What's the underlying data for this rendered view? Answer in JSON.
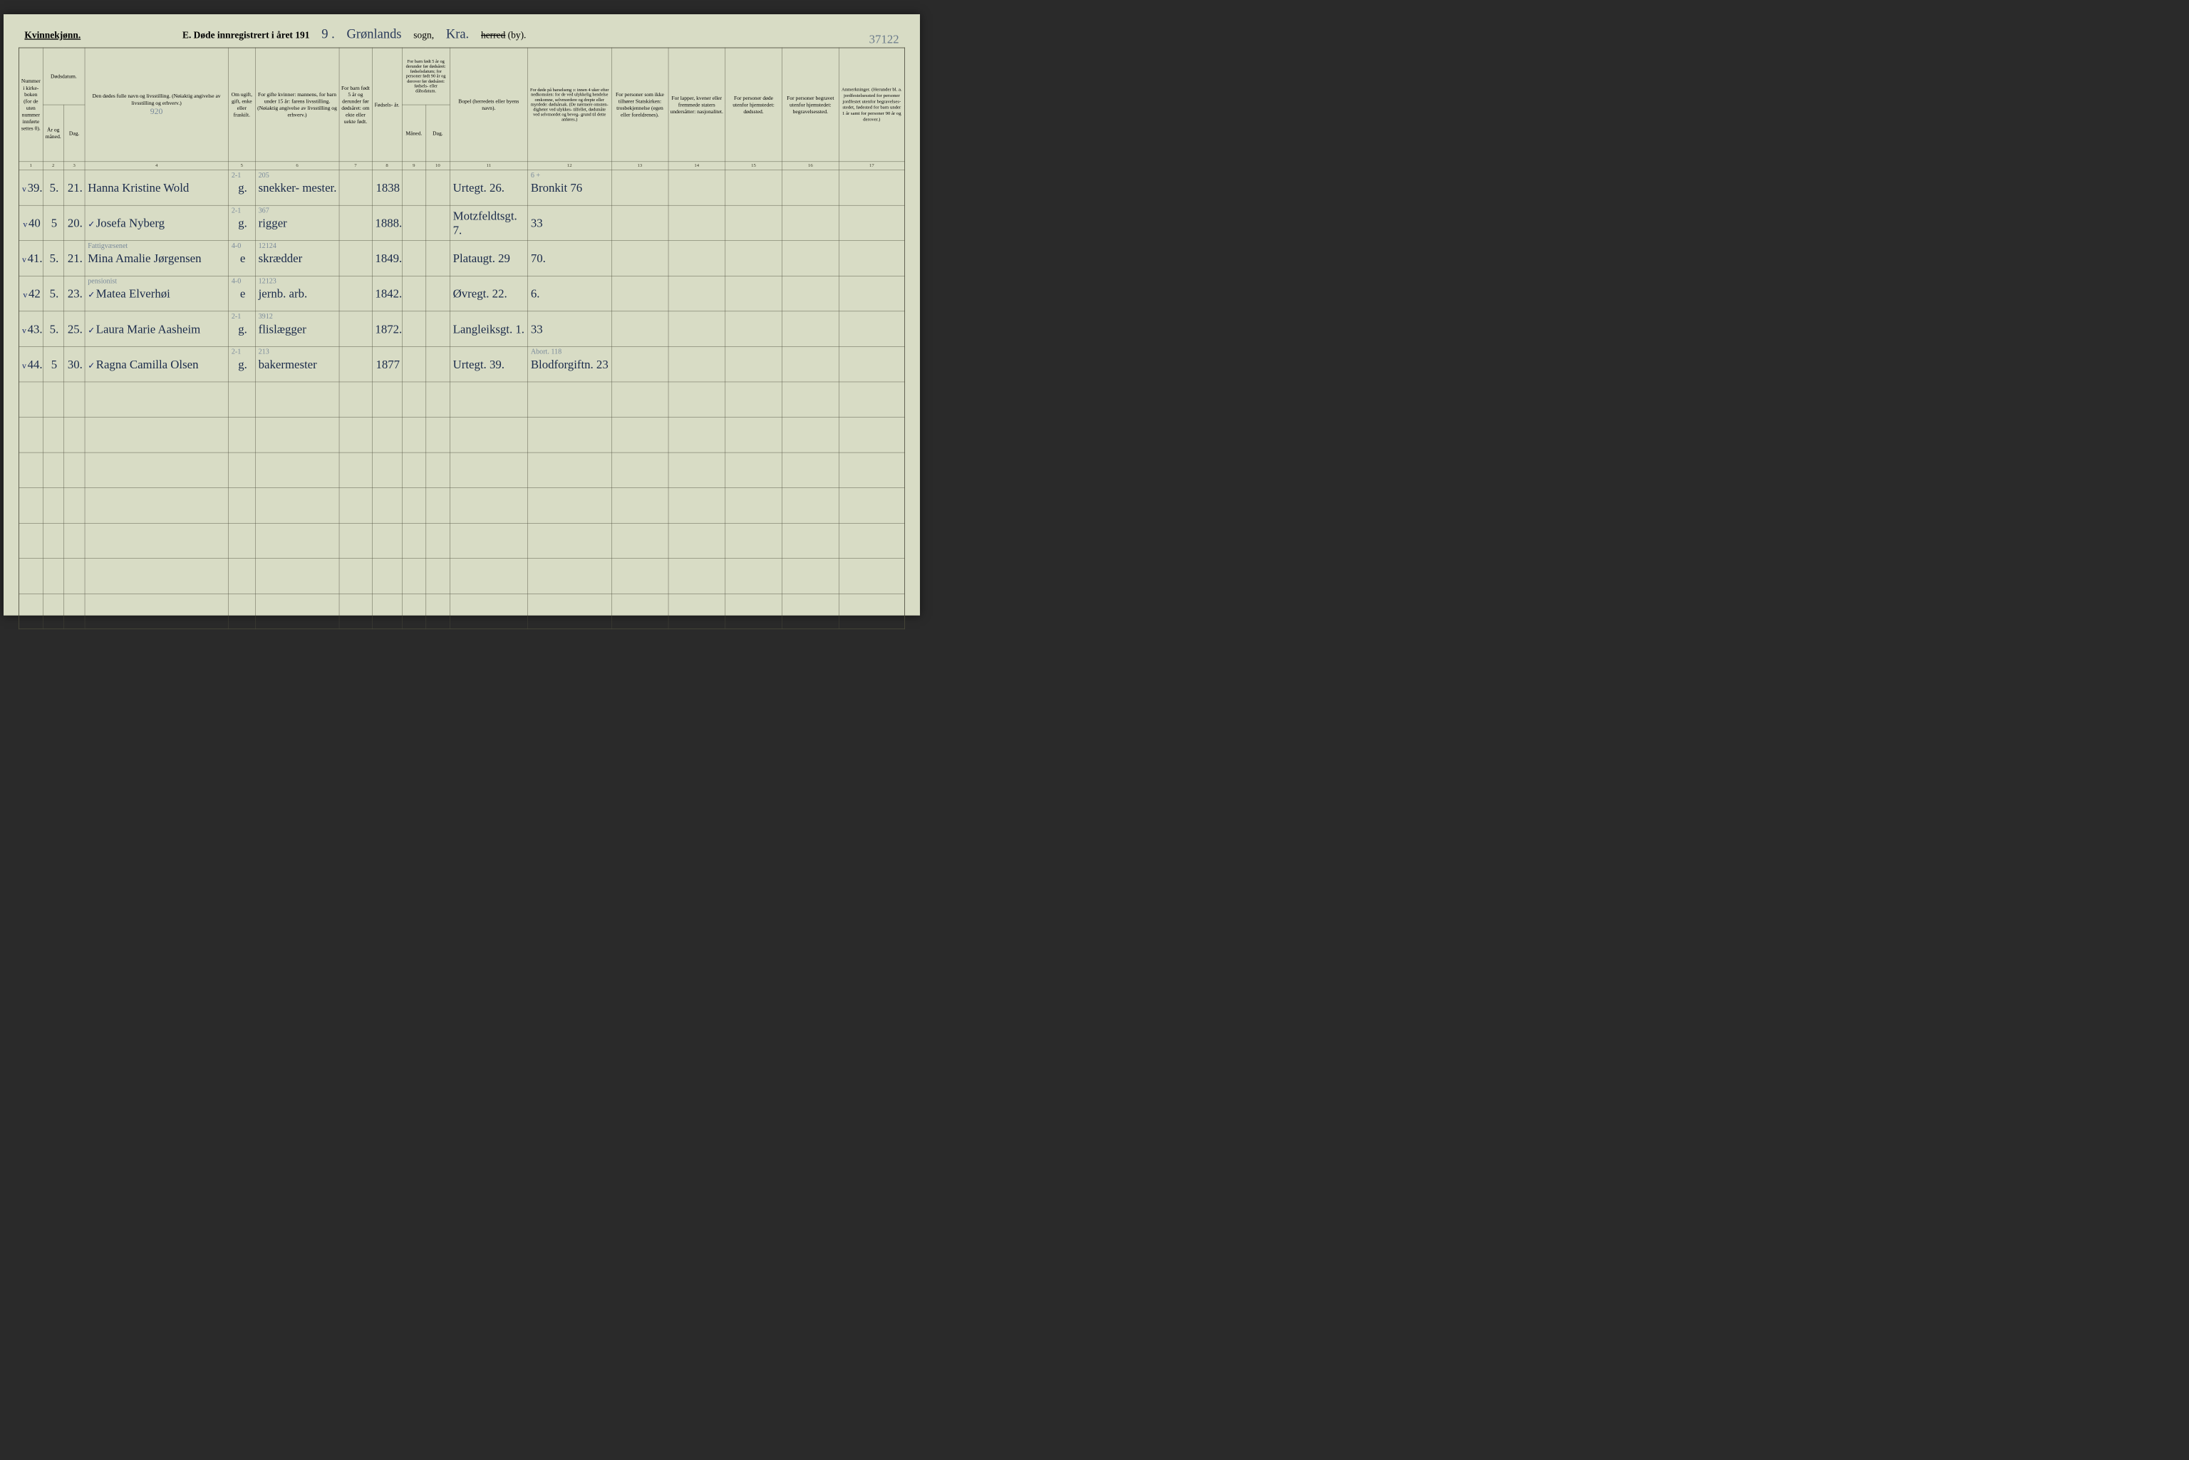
{
  "colors": {
    "paper": "#d8dcc5",
    "ink_print": "#2a2a1a",
    "ink_script": "#1a2a4a",
    "ink_pencil": "#7a8a9a",
    "rule": "#4a4a3a"
  },
  "header": {
    "gender": "Kvinnekjønn.",
    "form_title": "E. Døde innregistrert i året 191",
    "year_suffix": "9 .",
    "sogn_script": "Grønlands",
    "sogn_label": "sogn,",
    "by_script": "Kra.",
    "herred_struck": "herred",
    "by_label": "(by).",
    "page_no": "37122"
  },
  "columns": {
    "h1": "Nummer i kirke- boken (for de uten nummer innførte settes 0).",
    "h2_top": "Dødsdatum.",
    "h2a": "År og måned.",
    "h2b": "Dag.",
    "h4": "Den dødes fulle navn og livsstilling. (Nøiaktig angivelse av livsstilling og erhverv.)",
    "h4_pencil": "920",
    "h5": "Om ugift, gift, enke eller fraskilt.",
    "h6": "For gifte kvinner: mannens, for barn under 15 år: farens livsstilling. (Nøiaktig angivelse av livsstilling og erhverv.)",
    "h7": "For barn født 5 år og derunder før dødsåret: om ekte eller uekte født.",
    "h8": "Fødsels- år.",
    "h9_top": "For barn født 5 år og derunder før dødsåret: fødselsdatum; for personer født 90 år og derover før dødsåret: fødsels- eller dåbsdatum.",
    "h9a": "Måned.",
    "h9b": "Dag.",
    "h11": "Bopel (herredets eller byens navn).",
    "h12": "For døde på barselseng ɔ: innen 4 uker efter nedkomsten: for de ved ulykkelig hendelse omkomne, selvmordere og drepte eller myrdede: dødsårsak. (De nærmere omsten- digheter ved ulykkes- tilfellet, dødsmåte ved selvmordet og beveg- grund til dette anføres.)",
    "h13": "For personer som ikke tilhører Statskirken: trosbekjennelse (egen eller foreldrenes).",
    "h14": "For lapper, kvener eller fremmede staters undersåtter: nasjonalitet.",
    "h15": "For personer døde utenfor hjemstedet: dødssted.",
    "h16": "For personer begravet utenfor hjemstedet: begravelsessted.",
    "h17": "Anmerkninger. (Herunder bl. a. jordfestelsessted for personer jordfestet utenfor begravelses- stedet, fødested for barn under 1 år samt for personer 90 år og derover.)"
  },
  "colnums": [
    "1",
    "2",
    "3",
    "4",
    "5",
    "6",
    "7",
    "8",
    "9",
    "10",
    "11",
    "12",
    "13",
    "14",
    "15",
    "16",
    "17"
  ],
  "rows": [
    {
      "n": "39.",
      "tick": "v",
      "mnd": "5.",
      "dag": "21.",
      "name": "Hanna Kristine Wold",
      "civ": "g.",
      "civ_sup": "2-1",
      "occ": "snekker- mester.",
      "occ_sup": "205",
      "birth": "1838",
      "addr": "Urtegt. 26.",
      "cause": "Bronkit 76",
      "cause_sup": "6 +"
    },
    {
      "n": "40",
      "tick": "v",
      "mnd": "5",
      "dag": "20.",
      "name": "Josefa Nyberg",
      "name_tick": "v",
      "civ": "g.",
      "civ_sup": "2-1",
      "occ": "rigger",
      "occ_sup": "367",
      "birth": "1888.",
      "addr": "Motzfeldtsgt. 7.",
      "cause": "33"
    },
    {
      "n": "41.",
      "tick": "v",
      "mnd": "5.",
      "dag": "21.",
      "name": "Mina Amalie Jørgensen",
      "name_sup": "Fattigvæsenet",
      "civ": "e",
      "civ_sup": "4-0",
      "occ": "skrædder",
      "occ_sup": "12124",
      "birth": "1849.",
      "addr": "Plataugt. 29",
      "cause": "70."
    },
    {
      "n": "42",
      "tick": "v",
      "mnd": "5.",
      "dag": "23.",
      "name": "Matea Elverhøi",
      "name_sup": "pensionist",
      "name_tick": "v",
      "civ": "e",
      "civ_sup": "4-0",
      "occ": "jernb. arb.",
      "occ_sup": "12123",
      "birth": "1842.",
      "addr": "Øvregt. 22.",
      "cause": "6."
    },
    {
      "n": "43.",
      "tick": "v",
      "mnd": "5.",
      "dag": "25.",
      "name": "Laura Marie Aasheim",
      "name_tick": "v",
      "civ": "g.",
      "civ_sup": "2-1",
      "occ": "flislægger",
      "occ_sup": "3912",
      "birth": "1872.",
      "addr": "Langleiksgt. 1.",
      "cause": "33"
    },
    {
      "n": "44.",
      "tick": "v",
      "mnd": "5",
      "dag": "30.",
      "name": "Ragna Camilla Olsen",
      "name_tick": "v",
      "civ": "g.",
      "civ_sup": "2-1",
      "occ": "bakermester",
      "occ_sup": "213",
      "birth": "1877",
      "addr": "Urtegt. 39.",
      "cause": "Blodforgiftn. 23",
      "cause_sup": "Abort. 118"
    }
  ],
  "empty_rows": 7
}
